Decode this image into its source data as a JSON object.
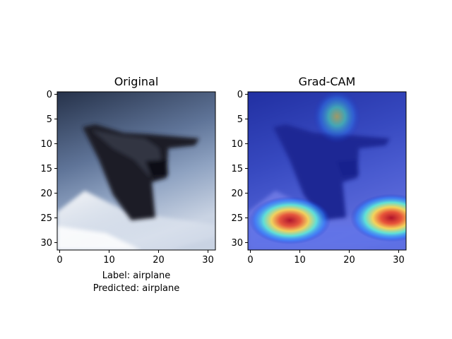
{
  "figure": {
    "panels": [
      {
        "id": "original",
        "title": "Original",
        "x_ticks": [
          "0",
          "10",
          "20",
          "30"
        ],
        "y_ticks": [
          "0",
          "5",
          "10",
          "15",
          "20",
          "25",
          "30"
        ],
        "xlabel_lines": [
          "Label: airplane",
          "Predicted: airplane"
        ],
        "image": {
          "grid": [
            32,
            32
          ],
          "subject": "dark stealth aircraft silhouette",
          "background_colors": [
            "#5b6f8f",
            "#a9b7cc",
            "#f3f6fb"
          ]
        }
      },
      {
        "id": "gradcam",
        "title": "Grad-CAM",
        "x_ticks": [
          "0",
          "10",
          "20",
          "30"
        ],
        "y_ticks": [
          "0",
          "5",
          "10",
          "15",
          "20",
          "25",
          "30"
        ],
        "xlabel_lines": [],
        "heatmap": {
          "colormap": "jet",
          "hotspots": [
            {
              "cx": 8,
              "cy": 25.5,
              "intensity": 0.9
            },
            {
              "cx": 28.5,
              "cy": 25,
              "intensity": 1.0
            },
            {
              "cx": 17.5,
              "cy": 4.5,
              "intensity": 0.55
            }
          ]
        }
      }
    ]
  }
}
